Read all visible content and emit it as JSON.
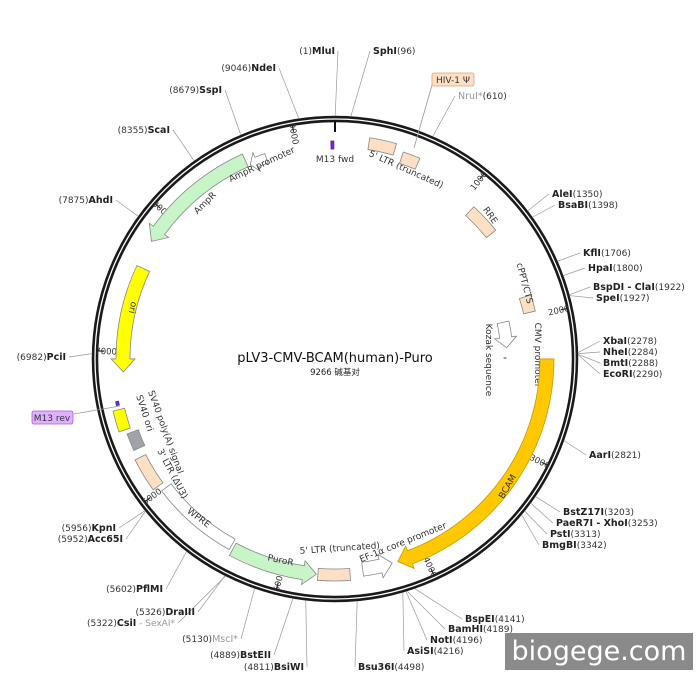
{
  "plasmid": {
    "name": "pLV3-CMV-BCAM(human)-Puro",
    "size_label": "9266 碱基对",
    "length_bp": 9266
  },
  "features": [
    {
      "label": "M13 fwd",
      "start": 9238,
      "end": 9258,
      "type": "mark",
      "color": "#7a2ad0"
    },
    {
      "label": "5' LTR (truncated)",
      "start": 230,
      "end": 410,
      "type": "box",
      "color": "#fde0c3"
    },
    {
      "label": "HIV-1 Ψ",
      "start": 470,
      "end": 590,
      "type": "box",
      "color": "#fde0c3"
    },
    {
      "label": "RRE",
      "start": 1090,
      "end": 1320,
      "type": "box",
      "color": "#fde0c3"
    },
    {
      "label": "cPPT/CTS",
      "start": 1850,
      "end": 1970,
      "type": "box",
      "color": "#fde0c3"
    },
    {
      "label": "CMV promoter",
      "start": 2000,
      "end": 2220,
      "type": "arrow",
      "dir": 1,
      "color": "#ffffff"
    },
    {
      "label": "Kozak sequence",
      "start": 2305,
      "end": 2312,
      "type": "mark",
      "color": "#999999"
    },
    {
      "label": "BCAM",
      "start": 2316,
      "end": 4190,
      "type": "arrow",
      "dir": 1,
      "color": "#ffc800"
    },
    {
      "label": "EF-1α core promoter",
      "start": 4230,
      "end": 4440,
      "type": "arrow",
      "dir": -1,
      "color": "#ffffff"
    },
    {
      "label": "5' LTR (truncated)",
      "start": 4530,
      "end": 4750,
      "type": "box",
      "color": "#fde0c3"
    },
    {
      "label": "PuroR",
      "start": 4760,
      "end": 5360,
      "type": "arrow",
      "dir": -1,
      "color": "#c8f5c8"
    },
    {
      "label": "WPRE",
      "start": 5380,
      "end": 5990,
      "type": "box",
      "color": "#ffffff"
    },
    {
      "label": "3' LTR (ΔU3)",
      "start": 6030,
      "end": 6260,
      "type": "box",
      "color": "#fde0c3"
    },
    {
      "label": "SV40 poly(A) signal",
      "start": 6320,
      "end": 6440,
      "type": "box",
      "color": "#a0a4a8"
    },
    {
      "label": "SV40 ori",
      "start": 6470,
      "end": 6610,
      "type": "box",
      "color": "#ffff00"
    },
    {
      "label": "M13 rev",
      "start": 6640,
      "end": 6665,
      "type": "mark",
      "color": "#7a2ad0"
    },
    {
      "label": "ori",
      "start": 6860,
      "end": 7600,
      "type": "arrow",
      "dir": -1,
      "color": "#ffff00"
    },
    {
      "label": "AmpR",
      "start": 7790,
      "end": 8640,
      "type": "arrow",
      "dir": -1,
      "color": "#c8f5c8"
    },
    {
      "label": "AmpR promoter",
      "start": 8660,
      "end": 8780,
      "type": "arrow",
      "dir": -1,
      "color": "#ffffff"
    }
  ],
  "ticks": [
    "1000",
    "2000",
    "3000",
    "4000",
    "5000",
    "6000",
    "7000",
    "8000",
    "9000"
  ],
  "sites": [
    {
      "name": "MluI",
      "pos": "1"
    },
    {
      "name": "SphI",
      "pos": "96"
    },
    {
      "name": "NruI*",
      "pos": "610",
      "gray": true
    },
    {
      "name": "AleI",
      "pos": "1350"
    },
    {
      "name": "BsaBI",
      "pos": "1398"
    },
    {
      "name": "KflI",
      "pos": "1706"
    },
    {
      "name": "HpaI",
      "pos": "1800"
    },
    {
      "name": "BspDI - ClaI",
      "pos": "1922"
    },
    {
      "name": "SpeI",
      "pos": "1927"
    },
    {
      "name": "XbaI",
      "pos": "2278"
    },
    {
      "name": "NheI",
      "pos": "2284"
    },
    {
      "name": "BmtI",
      "pos": "2288"
    },
    {
      "name": "EcoRI",
      "pos": "2290"
    },
    {
      "name": "AarI",
      "pos": "2821"
    },
    {
      "name": "BstZ17I",
      "pos": "3203"
    },
    {
      "name": "PaeR7I - XhoI",
      "pos": "3253"
    },
    {
      "name": "PstI",
      "pos": "3313"
    },
    {
      "name": "BmgBI",
      "pos": "3342"
    },
    {
      "name": "BspEI",
      "pos": "4141"
    },
    {
      "name": "BamHI",
      "pos": "4189"
    },
    {
      "name": "NotI",
      "pos": "4196"
    },
    {
      "name": "AsiSI",
      "pos": "4216"
    },
    {
      "name": "Bsu36I",
      "pos": "4498"
    },
    {
      "name": "BsiWI",
      "pos": "4811"
    },
    {
      "name": "BstEII",
      "pos": "4889"
    },
    {
      "name": "MscI*",
      "pos": "5130",
      "gray": true
    },
    {
      "name": "CsiI",
      "pos": "5322",
      "extra": " - SexAI*"
    },
    {
      "name": "DraIII",
      "pos": "5326"
    },
    {
      "name": "PflMI",
      "pos": "5602"
    },
    {
      "name": "Acc65I",
      "pos": "5952"
    },
    {
      "name": "KpnI",
      "pos": "5956"
    },
    {
      "name": "PciI",
      "pos": "6982"
    },
    {
      "name": "AhdI",
      "pos": "7875"
    },
    {
      "name": "ScaI",
      "pos": "8355"
    },
    {
      "name": "SspI",
      "pos": "8679"
    },
    {
      "name": "NdeI",
      "pos": "9046"
    }
  ],
  "watermark": "biogege.com"
}
